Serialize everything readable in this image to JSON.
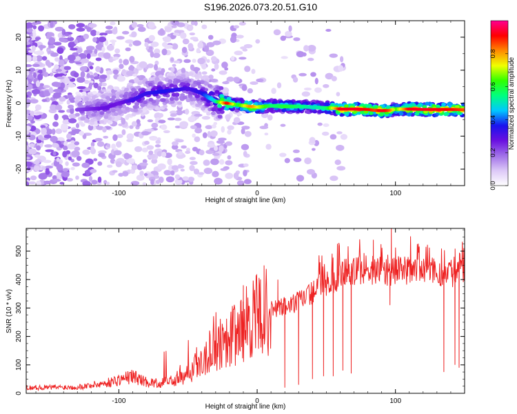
{
  "title": "S196.2026.073.20.51.G10",
  "colors": {
    "snr_line": "#ee2222",
    "ridge": "#ff1a1a"
  },
  "colorbar": {
    "label": "Normalized spectral amplitude",
    "ticks": [
      "0.0",
      "0.2",
      "0.4",
      "0.6",
      "0.8"
    ],
    "tick_values": [
      0.0,
      0.2,
      0.4,
      0.6,
      0.8
    ],
    "range": [
      0,
      1
    ],
    "colormap": [
      "#ffffff",
      "#dcc8f7",
      "#a070e8",
      "#6a10e0",
      "#1a12ee",
      "#00c8ff",
      "#00ff80",
      "#30ff00",
      "#f0ff00",
      "#ff8a00",
      "#ff0000",
      "#ff0090"
    ]
  },
  "chart_data": [
    {
      "type": "heatmap",
      "name": "spectrogram",
      "xlabel": "Height of straight line (km)",
      "ylabel": "Frequency (Hz)",
      "xlim": [
        -167,
        150
      ],
      "ylim": [
        -25,
        25
      ],
      "xticks": [
        -100,
        0,
        100
      ],
      "xtick_labels": [
        "-100",
        "0",
        "100"
      ],
      "yticks": [
        -20,
        -10,
        0,
        10,
        20
      ],
      "ytick_labels": [
        "-20",
        "-10",
        "0",
        "10",
        "20"
      ],
      "ridge": {
        "x": [
          -130,
          -110,
          -100,
          -90,
          -80,
          -70,
          -60,
          -50,
          -40,
          -30,
          -22,
          -15,
          -5,
          0,
          10,
          20,
          30,
          40,
          50,
          55,
          60,
          70,
          80,
          85,
          90,
          95,
          100,
          110,
          120,
          130,
          140,
          150
        ],
        "freq": [
          -2,
          -1.5,
          0,
          1,
          3,
          3.5,
          4,
          4.5,
          3,
          0.5,
          0,
          -0.5,
          -1,
          -1.2,
          -0.8,
          -1,
          -1,
          -1.2,
          -1.5,
          -1.5,
          -1.8,
          -1.8,
          -1.9,
          -2.2,
          -2.3,
          -2.2,
          -1.8,
          -1.8,
          -1.9,
          -1.9,
          -1.9,
          -2
        ],
        "amplitude": [
          0.22,
          0.28,
          0.26,
          0.32,
          0.33,
          0.36,
          0.34,
          0.3,
          0.35,
          0.5,
          0.9,
          0.55,
          0.82,
          0.7,
          0.55,
          0.6,
          0.55,
          0.5,
          0.55,
          0.72,
          0.92,
          0.93,
          0.9,
          0.85,
          0.93,
          0.85,
          0.6,
          0.92,
          0.93,
          0.92,
          0.9,
          0.85
        ]
      }
    },
    {
      "type": "line",
      "name": "snr",
      "xlabel": "Height of straight line (km)",
      "ylabel": "SNR (10 * v/v)",
      "xlim": [
        -167,
        150
      ],
      "ylim": [
        0,
        580
      ],
      "xticks": [
        -100,
        0,
        100
      ],
      "xtick_labels": [
        "-100",
        "0",
        "100"
      ],
      "yticks": [
        0,
        100,
        200,
        300,
        400,
        500
      ],
      "ytick_labels": [
        "0",
        "100",
        "200",
        "300",
        "400",
        "500"
      ],
      "baseline": {
        "x": [
          -167,
          -130,
          -110,
          -90,
          -80,
          -70,
          -55,
          -45,
          -35,
          -25,
          -15,
          -5,
          5,
          15,
          25,
          35,
          45,
          55,
          60,
          70,
          80,
          90,
          100,
          110,
          120,
          130,
          140,
          150
        ],
        "y": [
          20,
          22,
          35,
          60,
          40,
          35,
          55,
          95,
          140,
          190,
          210,
          260,
          280,
          300,
          310,
          340,
          370,
          390,
          420,
          430,
          435,
          430,
          430,
          435,
          430,
          425,
          425,
          420
        ]
      },
      "spikes": [
        {
          "x": -10,
          "y": 380
        },
        {
          "x": 5,
          "y": 450
        },
        {
          "x": 15,
          "y": 400
        },
        {
          "x": 20,
          "y": 20
        },
        {
          "x": 30,
          "y": 30
        },
        {
          "x": 40,
          "y": 50
        },
        {
          "x": 48,
          "y": 60
        },
        {
          "x": 55,
          "y": 60
        },
        {
          "x": 59,
          "y": 520
        },
        {
          "x": 62,
          "y": 80
        },
        {
          "x": 68,
          "y": 70
        },
        {
          "x": 84,
          "y": 540
        },
        {
          "x": 97,
          "y": 580
        },
        {
          "x": 96,
          "y": 310
        },
        {
          "x": 135,
          "y": 75
        },
        {
          "x": 143,
          "y": 100
        },
        {
          "x": 146,
          "y": 90
        }
      ]
    }
  ]
}
